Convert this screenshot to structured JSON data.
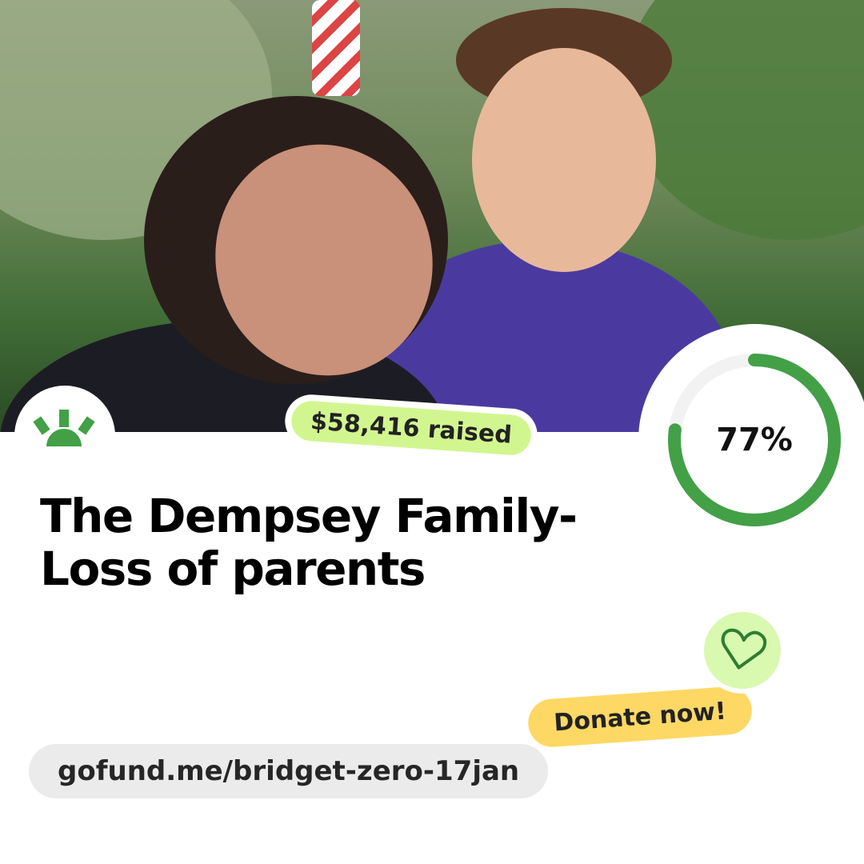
{
  "campaign": {
    "title_line1": "The Dempsey Family-",
    "title_line2": "Loss of parents",
    "raised_label": "$58,416 raised",
    "progress_percent": 77,
    "progress_label": "77%",
    "donate_label": "Donate now!",
    "url": "gofund.me/bridget-zero-17jan"
  },
  "colors": {
    "brand_green": "#43a047",
    "raised_badge": "#d2f68f",
    "donate_badge": "#fed865",
    "heart_bg": "#d9f8b0"
  },
  "icons": {
    "logo": "gofundme-sunrise-logo",
    "heart": "heart-outline-icon"
  }
}
